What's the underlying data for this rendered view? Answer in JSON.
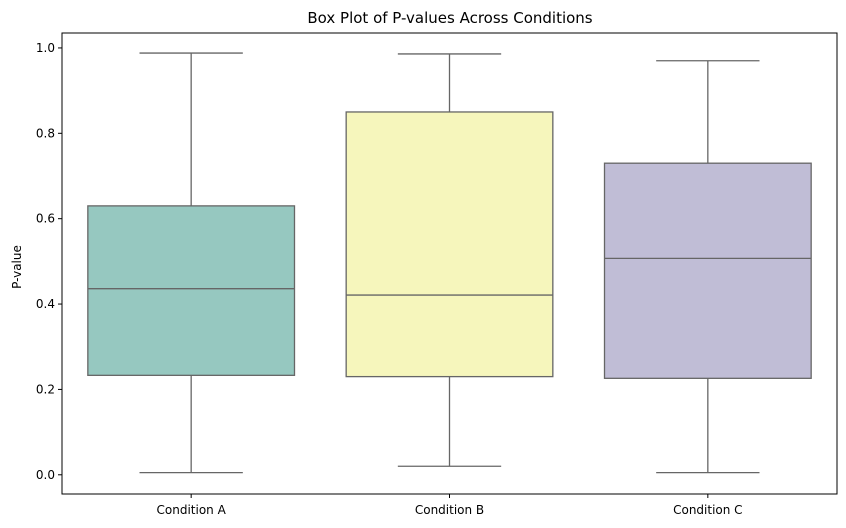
{
  "chart_data": {
    "type": "box",
    "title": "Box Plot of P-values Across Conditions",
    "xlabel": "",
    "ylabel": "P-value",
    "ylim": [
      -0.045,
      1.035
    ],
    "yticks": [
      0.0,
      0.2,
      0.4,
      0.6,
      0.8,
      1.0
    ],
    "ytick_labels": [
      "0.0",
      "0.2",
      "0.4",
      "0.6",
      "0.8",
      "1.0"
    ],
    "grid": false,
    "categories": [
      "Condition A",
      "Condition B",
      "Condition C"
    ],
    "boxes": [
      {
        "category": "Condition A",
        "min": 0.005,
        "q1": 0.233,
        "median": 0.436,
        "q3": 0.63,
        "max": 0.988,
        "color": "#96c8c0"
      },
      {
        "category": "Condition B",
        "min": 0.02,
        "q1": 0.23,
        "median": 0.421,
        "q3": 0.85,
        "max": 0.986,
        "color": "#f6f6bc"
      },
      {
        "category": "Condition C",
        "min": 0.005,
        "q1": 0.226,
        "median": 0.507,
        "q3": 0.73,
        "max": 0.97,
        "color": "#c0bdd6"
      }
    ],
    "line_color": "#666666"
  }
}
